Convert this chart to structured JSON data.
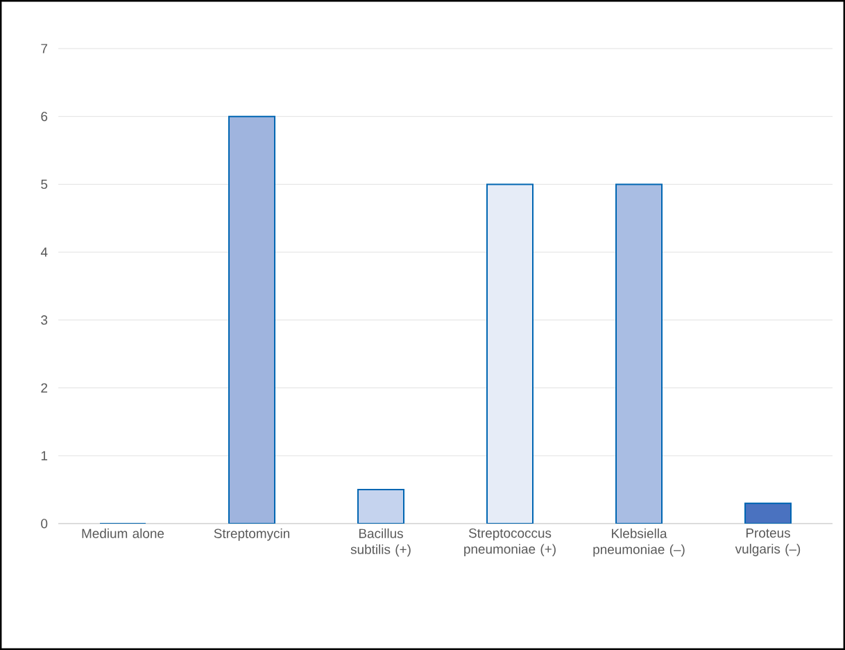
{
  "chart_data": {
    "type": "bar",
    "categories": [
      "Medium alone",
      "Streptomycin",
      "Bacillus subtilis (+)",
      "Streptococcus pneumoniae (+)",
      "Klebsiella pneumoniae (–)",
      "Proteus vulgaris (–)"
    ],
    "values": [
      0,
      6,
      0.5,
      5,
      5,
      0.3
    ],
    "colors": [
      "#dbe3f3",
      "#9fb4de",
      "#c5d3ee",
      "#e6ecf7",
      "#a9bde3",
      "#4a72c0"
    ],
    "ylim": [
      0,
      7
    ],
    "yticks": [
      0,
      1,
      2,
      3,
      4,
      5,
      6,
      7
    ],
    "grid": "y"
  }
}
